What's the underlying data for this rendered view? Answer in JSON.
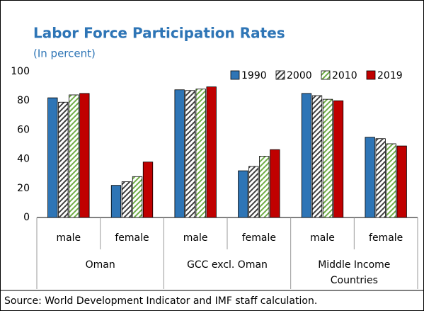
{
  "chart_data": {
    "type": "bar",
    "title": "Labor Force Participation Rates",
    "subtitle": "(In percent)",
    "categories": [
      "male",
      "female",
      "male",
      "female",
      "male",
      "female"
    ],
    "groups": [
      "Oman",
      "GCC excl. Oman",
      "Middle Income Countries"
    ],
    "series": [
      {
        "name": "1990",
        "color": "#2e75b6",
        "values": [
          82,
          22,
          87.5,
          32,
          85,
          55
        ]
      },
      {
        "name": "2000",
        "color": "#404040",
        "hatch": true,
        "values": [
          79,
          24.5,
          87,
          35,
          83.5,
          54
        ]
      },
      {
        "name": "2010",
        "color": "#70ad47",
        "hatch": true,
        "values": [
          84,
          28,
          88,
          42,
          81,
          50.5
        ]
      },
      {
        "name": "2019",
        "color": "#c00000",
        "values": [
          85,
          38,
          89.5,
          46.5,
          80,
          49
        ]
      }
    ],
    "ylim": [
      0,
      100
    ],
    "yticks": [
      0,
      20,
      40,
      60,
      80,
      100
    ],
    "source": "Source: World Development Indicator and IMF staff calculation."
  }
}
